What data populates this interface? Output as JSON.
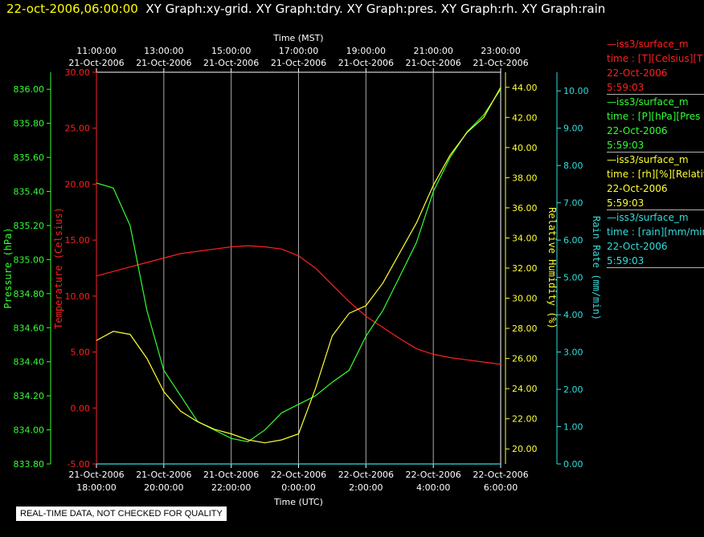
{
  "header": {
    "timestamp": "22-oct-2006,06:00:00",
    "graph_titles": "XY Graph:xy-grid.  XY Graph:tdry.  XY Graph:pres.  XY Graph:rh.  XY Graph:rain"
  },
  "note": "REAL-TIME DATA, NOT CHECKED FOR QUALITY",
  "legend": [
    {
      "line1": "—iss3/surface_m",
      "line2": "time : [T][Celsius][T",
      "line3": "22-Oct-2006",
      "line4": "5:59:03",
      "color": "#ff2020"
    },
    {
      "line1": "—iss3/surface_m",
      "line2": "time : [P][hPa][Pres",
      "line3": "22-Oct-2006",
      "line4": "5:59:03",
      "color": "#33ff33"
    },
    {
      "line1": "—iss3/surface_m",
      "line2": "time : [rh][%][Relativ",
      "line3": "22-Oct-2006",
      "line4": "5:59:03",
      "color": "#ffff33"
    },
    {
      "line1": "—iss3/surface_m",
      "line2": "time : [rain][mm/min",
      "line3": "22-Oct-2006",
      "line4": "5:59:03",
      "color": "#33dddd"
    }
  ],
  "chart_data": {
    "type": "line",
    "x_axis_top": {
      "title": "Time (MST)",
      "tick_times": [
        "11:00:00",
        "13:00:00",
        "15:00:00",
        "17:00:00",
        "19:00:00",
        "21:00:00",
        "23:00:00"
      ],
      "tick_dates": [
        "21-Oct-2006",
        "21-Oct-2006",
        "21-Oct-2006",
        "21-Oct-2006",
        "21-Oct-2006",
        "21-Oct-2006",
        "21-Oct-2006"
      ]
    },
    "x_axis_bottom": {
      "title": "Time (UTC)",
      "tick_dates": [
        "21-Oct-2006",
        "21-Oct-2006",
        "21-Oct-2006",
        "22-Oct-2006",
        "22-Oct-2006",
        "22-Oct-2006",
        "22-Oct-2006"
      ],
      "tick_times": [
        "18:00:00",
        "20:00:00",
        "22:00:00",
        "0:00:00",
        "2:00:00",
        "4:00:00",
        "6:00:00"
      ]
    },
    "x_range_utc_hours": [
      18,
      30
    ],
    "x_tick_hours": [
      18,
      20,
      22,
      24,
      26,
      28,
      30
    ],
    "grid": true,
    "axes": {
      "pressure": {
        "label": "Pressure (hPa)",
        "color": "#33ff33",
        "min": 833.8,
        "max": 836.1,
        "ticks": [
          "833.80",
          "834.00",
          "834.20",
          "834.40",
          "834.60",
          "834.80",
          "835.00",
          "835.20",
          "835.40",
          "835.60",
          "835.80",
          "836.00"
        ]
      },
      "temperature": {
        "label": "Temperature (Celsius)",
        "color": "#ff2020",
        "min": -5,
        "max": 30,
        "ticks": [
          "-5.00",
          "0.00",
          "5.00",
          "10.00",
          "15.00",
          "20.00",
          "25.00",
          "30.00"
        ]
      },
      "rh": {
        "label": "Relative Humidity (%)",
        "color": "#ffff33",
        "min": 19,
        "max": 45,
        "ticks": [
          "20.00",
          "22.00",
          "24.00",
          "26.00",
          "28.00",
          "30.00",
          "32.00",
          "34.00",
          "36.00",
          "38.00",
          "40.00",
          "42.00",
          "44.00"
        ]
      },
      "rain": {
        "label": "Rain Rate (mm/min)",
        "color": "#33dddd",
        "min": 0,
        "max": 10.5,
        "ticks": [
          "0.00",
          "1.00",
          "2.00",
          "3.00",
          "4.00",
          "5.00",
          "6.00",
          "7.00",
          "8.00",
          "9.00",
          "10.00"
        ]
      }
    },
    "series": [
      {
        "name": "iss3/surface_m time : [T][Celsius]",
        "axis": "temperature",
        "x": [
          18,
          18.5,
          19,
          19.5,
          20,
          20.5,
          21,
          21.5,
          22,
          22.5,
          23,
          23.5,
          24,
          24.5,
          25,
          25.5,
          26,
          26.5,
          27,
          27.5,
          28,
          28.5,
          29,
          29.5,
          30
        ],
        "y": [
          11.8,
          12.2,
          12.6,
          13.0,
          13.4,
          13.8,
          14.0,
          14.2,
          14.4,
          14.5,
          14.4,
          14.2,
          13.6,
          12.5,
          11.0,
          9.5,
          8.2,
          7.2,
          6.2,
          5.3,
          4.8,
          4.5,
          4.3,
          4.1,
          3.9
        ]
      },
      {
        "name": "iss3/surface_m time : [P][hPa]",
        "axis": "pressure",
        "x": [
          18,
          18.5,
          19,
          19.5,
          20,
          20.5,
          21,
          21.5,
          22,
          22.5,
          23,
          23.5,
          24,
          24.5,
          25,
          25.5,
          26,
          26.5,
          27,
          27.5,
          28,
          28.5,
          29,
          29.5,
          30
        ],
        "y": [
          835.45,
          835.42,
          835.2,
          834.7,
          834.35,
          834.2,
          834.05,
          834.0,
          833.95,
          833.93,
          834.0,
          834.1,
          834.15,
          834.2,
          834.28,
          834.35,
          834.55,
          834.7,
          834.9,
          835.1,
          835.4,
          835.6,
          835.75,
          835.85,
          836.0
        ]
      },
      {
        "name": "iss3/surface_m time : [rh][%]",
        "axis": "rh",
        "x": [
          18,
          18.5,
          19,
          19.5,
          20,
          20.5,
          21,
          21.5,
          22,
          22.5,
          23,
          23.5,
          24,
          24.5,
          25,
          25.5,
          26,
          26.5,
          27,
          27.5,
          28,
          28.5,
          29,
          29.5,
          30
        ],
        "y": [
          27.2,
          27.8,
          27.6,
          26.0,
          23.8,
          22.5,
          21.8,
          21.3,
          21.0,
          20.6,
          20.4,
          20.6,
          21.0,
          24.0,
          27.5,
          29.0,
          29.5,
          31.0,
          33.0,
          35.0,
          37.5,
          39.5,
          41.0,
          42.0,
          44.0
        ]
      },
      {
        "name": "iss3/surface_m time : [rain][mm/min]",
        "axis": "rain",
        "x": [
          18,
          30
        ],
        "y": [
          0.0,
          0.0
        ]
      }
    ]
  }
}
